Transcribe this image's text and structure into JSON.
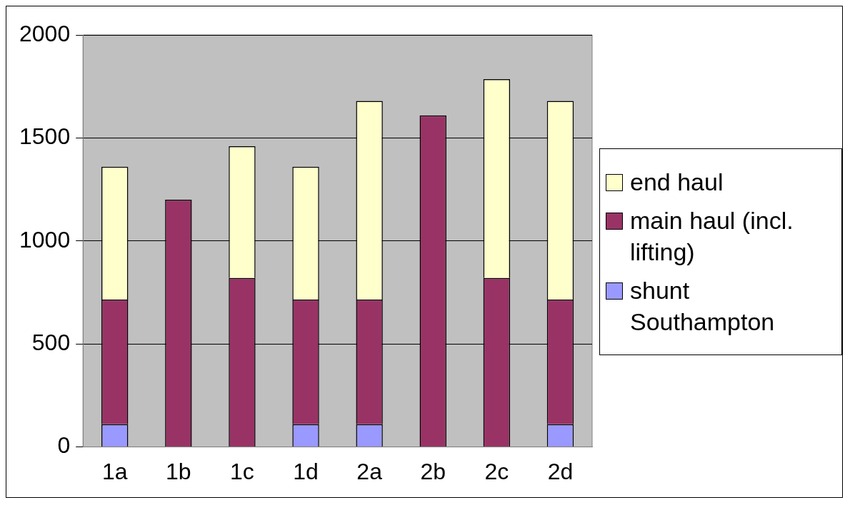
{
  "chart_data": {
    "type": "bar",
    "stacked": true,
    "categories": [
      "1a",
      "1b",
      "1c",
      "1d",
      "2a",
      "2b",
      "2c",
      "2d"
    ],
    "series": [
      {
        "name": "shunt Southampton",
        "color": "#9999ff",
        "values": [
          110,
          null,
          null,
          110,
          110,
          null,
          null,
          110
        ]
      },
      {
        "name": "main haul (incl. lifting)",
        "color": "#993366",
        "values": [
          605,
          1200,
          820,
          605,
          605,
          1610,
          820,
          605
        ]
      },
      {
        "name": "end haul",
        "color": "#ffffcc",
        "values": [
          645,
          null,
          640,
          645,
          965,
          null,
          965,
          965
        ]
      }
    ],
    "ylim": [
      0,
      2000
    ],
    "yticks": [
      0,
      500,
      1000,
      1500,
      2000
    ],
    "grid": "y",
    "legend": "right"
  }
}
